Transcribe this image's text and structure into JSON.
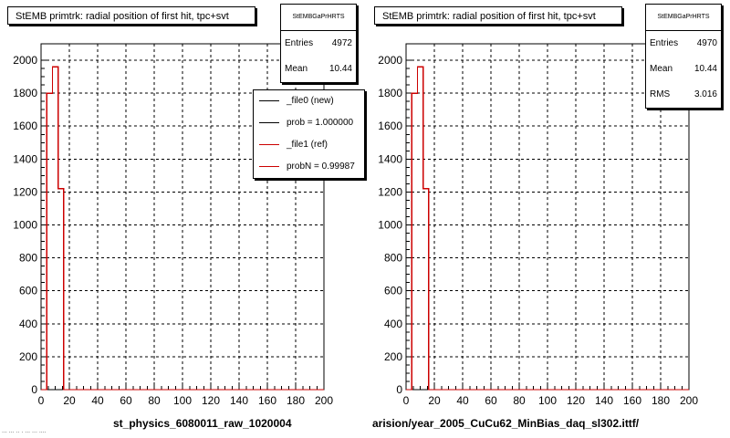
{
  "pads": [
    {
      "title": "StEMB primtrk: radial position of first hit, tpc+svt",
      "stats": {
        "title": "StEMBGaPrHRTS",
        "rows": [
          {
            "label": "Entries",
            "value": "4972"
          },
          {
            "label": "Mean",
            "value": "10.44"
          }
        ]
      },
      "legend": [
        {
          "label": "_file0 (new)",
          "color": "#000000"
        },
        {
          "label": "prob = 1.000000",
          "color": "#000000"
        },
        {
          "label": "_file1 (ref)",
          "color": "#cc0000"
        },
        {
          "label": "probN = 0.99987",
          "color": "#cc0000"
        }
      ],
      "xlabel": "st_physics_6080011_raw_1020004"
    },
    {
      "title": "StEMB primtrk: radial position of first hit, tpc+svt",
      "stats": {
        "title": "StEMBGaPrHRTS",
        "rows": [
          {
            "label": "Entries",
            "value": "4970"
          },
          {
            "label": "Mean",
            "value": "10.44"
          },
          {
            "label": "RMS",
            "value": "3.016"
          }
        ]
      },
      "legend": [],
      "xlabel": "arision/year_2005_CuCu62_MinBias_daq_sl302.ittf/"
    }
  ],
  "footer": "... ... .. . ... ... ....",
  "chart_data": [
    {
      "type": "line",
      "title": "StEMB primtrk: radial position of first hit, tpc+svt",
      "xlabel": "st_physics_6080011_raw_1020004",
      "ylabel": "",
      "xlim": [
        0,
        200
      ],
      "ylim": [
        0,
        2100
      ],
      "xticks": [
        0,
        20,
        40,
        60,
        80,
        100,
        120,
        140,
        160,
        180,
        200
      ],
      "yticks": [
        0,
        200,
        400,
        600,
        800,
        1000,
        1200,
        1400,
        1600,
        1800,
        2000
      ],
      "grid": true,
      "series": [
        {
          "name": "_file1 (ref)",
          "color": "#cc0000",
          "bin_edges": [
            0,
            2,
            4,
            6,
            8,
            10,
            12,
            14,
            16,
            18,
            200
          ],
          "values": [
            0,
            0,
            1800,
            1800,
            1960,
            1960,
            1220,
            1220,
            0,
            0
          ]
        }
      ]
    },
    {
      "type": "line",
      "title": "StEMB primtrk: radial position of first hit, tpc+svt",
      "xlabel": "arision/year_2005_CuCu62_MinBias_daq_sl302.ittf/",
      "ylabel": "",
      "xlim": [
        0,
        200
      ],
      "ylim": [
        0,
        2100
      ],
      "xticks": [
        0,
        20,
        40,
        60,
        80,
        100,
        120,
        140,
        160,
        180,
        200
      ],
      "yticks": [
        0,
        200,
        400,
        600,
        800,
        1000,
        1200,
        1400,
        1600,
        1800,
        2000
      ],
      "grid": true,
      "series": [
        {
          "color": "#cc0000",
          "bin_edges": [
            0,
            2,
            4,
            6,
            8,
            10,
            12,
            14,
            16,
            18,
            200
          ],
          "values": [
            0,
            0,
            1800,
            1800,
            1960,
            1960,
            1220,
            1220,
            0,
            0
          ]
        }
      ]
    }
  ]
}
